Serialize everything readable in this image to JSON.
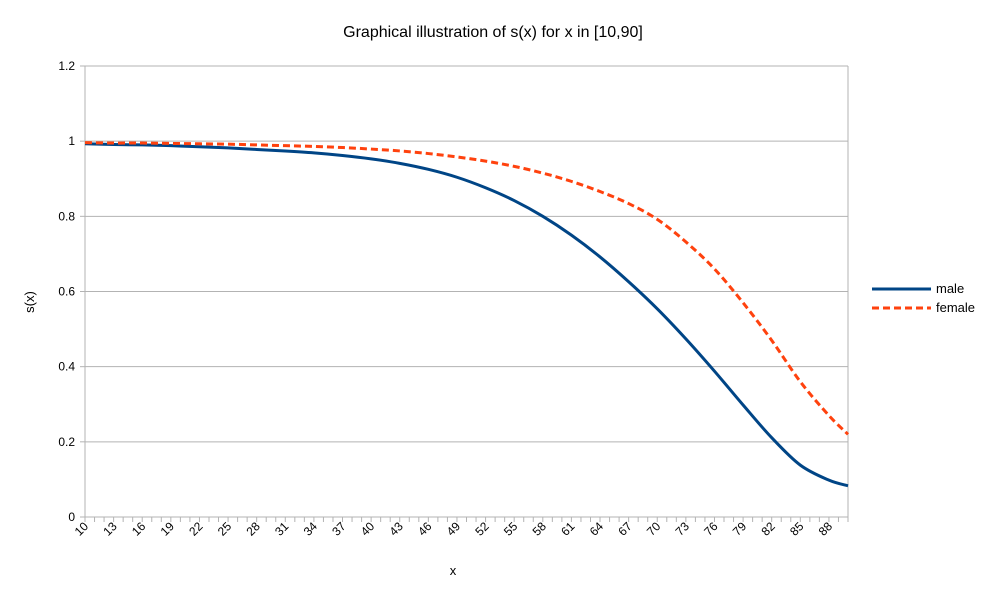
{
  "chart_data": {
    "type": "line",
    "title": "Graphical illustration of s(x) for x in [10,90]",
    "xlabel": "x",
    "ylabel": "s(x)",
    "ylim": [
      0,
      1.2
    ],
    "y_ticks": [
      "0",
      "0.2",
      "0.4",
      "0.6",
      "0.8",
      "1",
      "1.2"
    ],
    "x_tick_labels": [
      "10",
      "13",
      "16",
      "19",
      "22",
      "25",
      "28",
      "31",
      "34",
      "37",
      "40",
      "43",
      "46",
      "49",
      "52",
      "55",
      "58",
      "61",
      "64",
      "67",
      "70",
      "73",
      "76",
      "79",
      "82",
      "85",
      "88"
    ],
    "grid": "horizontal",
    "legend_position": "right",
    "x": [
      10,
      13,
      16,
      19,
      22,
      25,
      28,
      31,
      34,
      37,
      40,
      43,
      46,
      49,
      52,
      55,
      58,
      61,
      64,
      67,
      70,
      73,
      76,
      79,
      82,
      85,
      88,
      90
    ],
    "series": [
      {
        "name": "male",
        "color": "#004586",
        "dash": "solid",
        "values": [
          0.993,
          0.991,
          0.99,
          0.988,
          0.985,
          0.982,
          0.978,
          0.974,
          0.969,
          0.962,
          0.953,
          0.941,
          0.925,
          0.904,
          0.876,
          0.842,
          0.8,
          0.75,
          0.692,
          0.626,
          0.554,
          0.474,
          0.388,
          0.298,
          0.211,
          0.138,
          0.098,
          0.083
        ]
      },
      {
        "name": "female",
        "color": "#ff420e",
        "dash": "dashed",
        "values": [
          0.996,
          0.995,
          0.995,
          0.994,
          0.993,
          0.992,
          0.99,
          0.988,
          0.986,
          0.983,
          0.979,
          0.974,
          0.967,
          0.958,
          0.947,
          0.933,
          0.915,
          0.893,
          0.866,
          0.834,
          0.792,
          0.732,
          0.66,
          0.57,
          0.47,
          0.36,
          0.27,
          0.22
        ]
      }
    ]
  }
}
